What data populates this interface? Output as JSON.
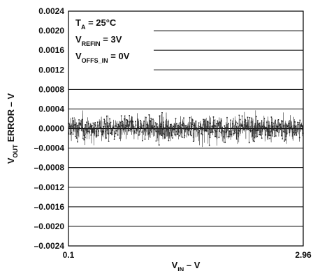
{
  "chart_data": {
    "type": "scatter",
    "title": "",
    "xlabel": {
      "main": "V",
      "sub": "IN",
      "suffix": " – V"
    },
    "ylabel": {
      "main": "V",
      "sub": "OUT",
      "suffix": " ERROR – V"
    },
    "xlim": [
      0.1,
      2.96
    ],
    "ylim": [
      -0.0024,
      0.0024
    ],
    "x_tick_labels": [
      "0.1",
      "2.96"
    ],
    "y_ticks": [
      0.0024,
      0.002,
      0.0016,
      0.0012,
      0.0008,
      0.0004,
      0.0,
      -0.0004,
      -0.0008,
      -0.0012,
      -0.0016,
      -0.002,
      -0.0024
    ],
    "y_tick_labels": [
      "0.0024",
      "0.0020",
      "0.0016",
      "0.0012",
      "0.0008",
      "0.0004",
      "0.0000",
      "–0.0004",
      "–0.0008",
      "–0.0012",
      "–0.0016",
      "–0.0020",
      "–0.0024"
    ],
    "grid": true,
    "annotations": [
      {
        "main": "T",
        "sub": "A",
        "suffix": " = 25°C"
      },
      {
        "main": "V",
        "sub": "REFIN",
        "suffix": " = 3V"
      },
      {
        "main": "V",
        "sub": "OFFS_IN",
        "suffix": " = 0V"
      }
    ],
    "series": [
      {
        "noise_band": {
          "typical_range": [
            -0.0005,
            0.0005
          ],
          "peak_range": [
            -0.0009,
            0.0009
          ],
          "center": 0.0
        }
      }
    ],
    "colors": {
      "data": "#222222",
      "grid": "#000000",
      "background": "#ffffff"
    }
  }
}
